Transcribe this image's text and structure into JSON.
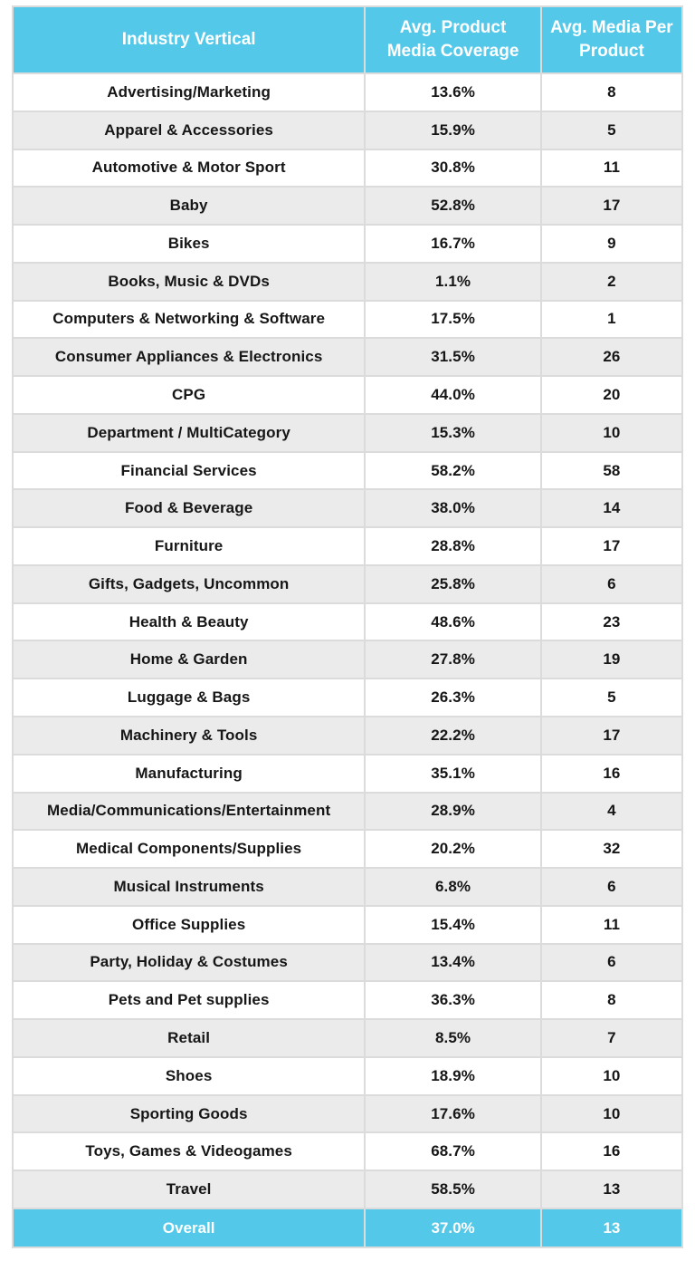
{
  "colors": {
    "accent": "#54C8E8",
    "stripe": "#EBEBEB",
    "border": "#DBDBDB",
    "header_text": "#FFFFFF",
    "body_text": "#161616"
  },
  "chart_data": {
    "type": "table",
    "title": "",
    "columns": [
      "Industry Vertical",
      "Avg. Product Media Coverage",
      "Avg. Media Per Product"
    ],
    "rows": [
      {
        "industry": "Advertising/Marketing",
        "coverage": "13.6%",
        "media": "8"
      },
      {
        "industry": "Apparel & Accessories",
        "coverage": "15.9%",
        "media": "5"
      },
      {
        "industry": "Automotive & Motor Sport",
        "coverage": "30.8%",
        "media": "11"
      },
      {
        "industry": "Baby",
        "coverage": "52.8%",
        "media": "17"
      },
      {
        "industry": "Bikes",
        "coverage": "16.7%",
        "media": "9"
      },
      {
        "industry": "Books, Music & DVDs",
        "coverage": "1.1%",
        "media": "2"
      },
      {
        "industry": "Computers & Networking & Software",
        "coverage": "17.5%",
        "media": "1"
      },
      {
        "industry": "Consumer Appliances & Electronics",
        "coverage": "31.5%",
        "media": "26"
      },
      {
        "industry": "CPG",
        "coverage": "44.0%",
        "media": "20"
      },
      {
        "industry": "Department / MultiCategory",
        "coverage": "15.3%",
        "media": "10"
      },
      {
        "industry": "Financial Services",
        "coverage": "58.2%",
        "media": "58"
      },
      {
        "industry": "Food & Beverage",
        "coverage": "38.0%",
        "media": "14"
      },
      {
        "industry": "Furniture",
        "coverage": "28.8%",
        "media": "17"
      },
      {
        "industry": "Gifts, Gadgets, Uncommon",
        "coverage": "25.8%",
        "media": "6"
      },
      {
        "industry": "Health & Beauty",
        "coverage": "48.6%",
        "media": "23"
      },
      {
        "industry": "Home & Garden",
        "coverage": "27.8%",
        "media": "19"
      },
      {
        "industry": "Luggage & Bags",
        "coverage": "26.3%",
        "media": "5"
      },
      {
        "industry": "Machinery & Tools",
        "coverage": "22.2%",
        "media": "17"
      },
      {
        "industry": "Manufacturing",
        "coverage": "35.1%",
        "media": "16"
      },
      {
        "industry": "Media/Communications/Entertainment",
        "coverage": "28.9%",
        "media": "4"
      },
      {
        "industry": "Medical Components/Supplies",
        "coverage": "20.2%",
        "media": "32"
      },
      {
        "industry": "Musical Instruments",
        "coverage": "6.8%",
        "media": "6"
      },
      {
        "industry": "Office Supplies",
        "coverage": "15.4%",
        "media": "11"
      },
      {
        "industry": "Party, Holiday & Costumes",
        "coverage": "13.4%",
        "media": "6"
      },
      {
        "industry": "Pets and Pet supplies",
        "coverage": "36.3%",
        "media": "8"
      },
      {
        "industry": "Retail",
        "coverage": "8.5%",
        "media": "7"
      },
      {
        "industry": "Shoes",
        "coverage": "18.9%",
        "media": "10"
      },
      {
        "industry": "Sporting Goods",
        "coverage": "17.6%",
        "media": "10"
      },
      {
        "industry": "Toys, Games & Videogames",
        "coverage": "68.7%",
        "media": "16"
      },
      {
        "industry": "Travel",
        "coverage": "58.5%",
        "media": "13"
      }
    ],
    "footer": {
      "industry": "Overall",
      "coverage": "37.0%",
      "media": "13"
    },
    "layout": {
      "striped": true,
      "header_background": "accent",
      "footer_background": "accent"
    }
  }
}
